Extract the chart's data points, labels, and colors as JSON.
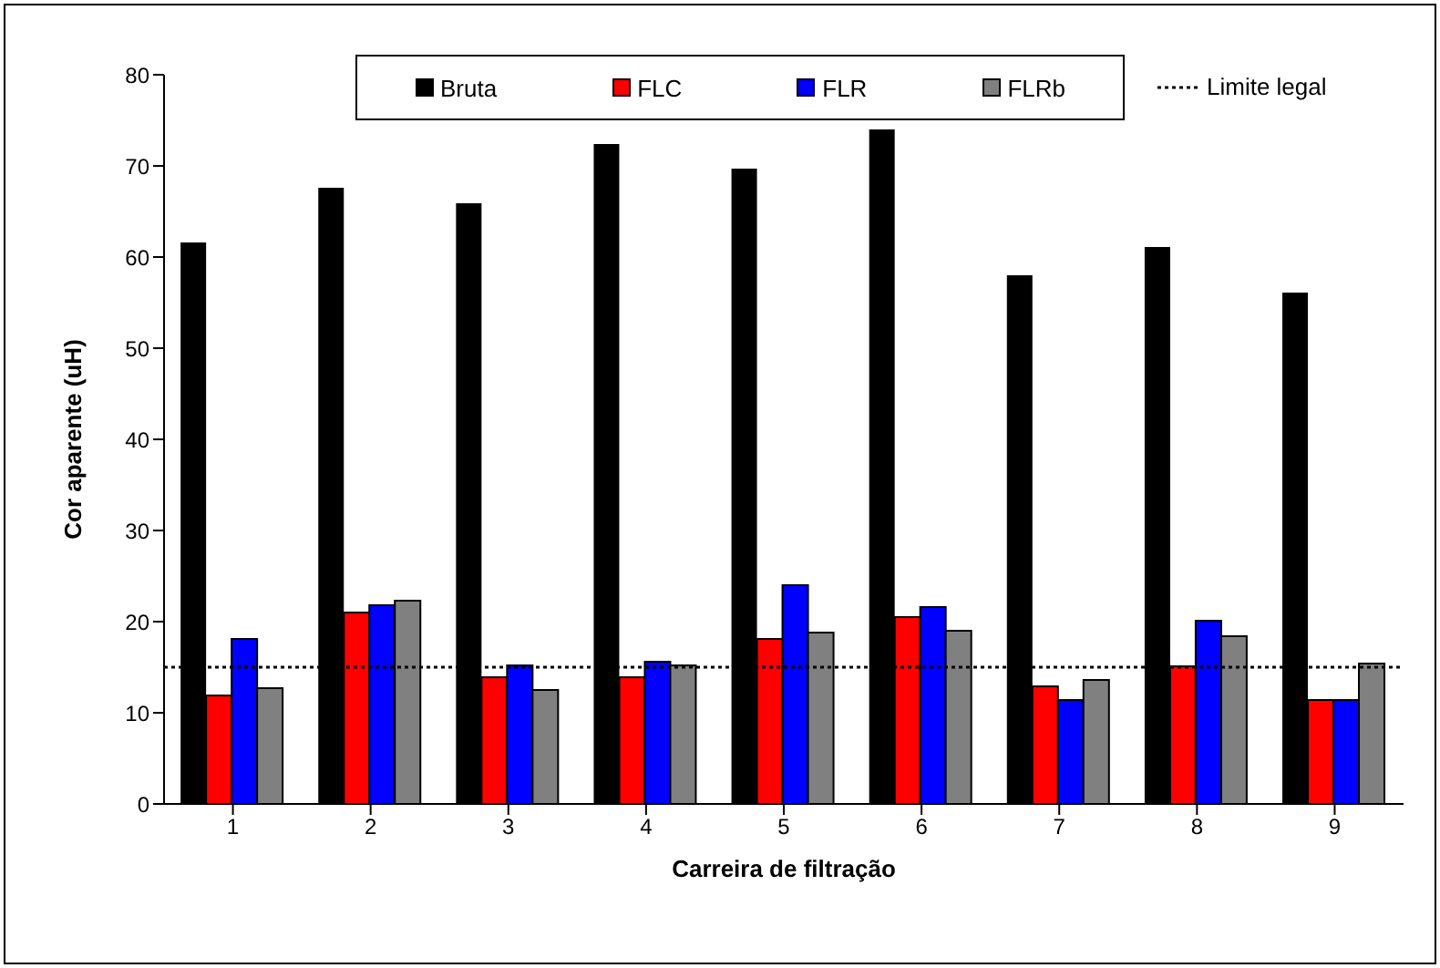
{
  "chart_data": {
    "type": "bar",
    "xlabel": "Carreira de filtração",
    "ylabel": "Cor aparente (uH)",
    "categories": [
      "1",
      "2",
      "3",
      "4",
      "5",
      "6",
      "7",
      "8",
      "9"
    ],
    "series": [
      {
        "name": "Bruta",
        "color": "#000000",
        "values": [
          61.6,
          67.6,
          65.9,
          72.4,
          69.7,
          74.0,
          58.0,
          61.1,
          56.1
        ]
      },
      {
        "name": "FLC",
        "color": "#ff0000",
        "values": [
          11.9,
          21.0,
          13.9,
          13.9,
          18.1,
          20.5,
          12.9,
          15.1,
          11.4
        ]
      },
      {
        "name": "FLR",
        "color": "#0000ff",
        "values": [
          18.1,
          21.8,
          15.2,
          15.6,
          24.0,
          21.6,
          11.4,
          20.1,
          11.4
        ]
      },
      {
        "name": "FLRb",
        "color": "#808080",
        "values": [
          12.7,
          22.3,
          12.5,
          15.2,
          18.8,
          19.0,
          13.6,
          18.4,
          15.4
        ]
      }
    ],
    "ref_lines": [
      {
        "axis": "y",
        "value": 15,
        "label": "Limite legal",
        "color": "#000000",
        "line_style": "dotted"
      }
    ],
    "ylim": [
      0,
      80
    ],
    "yticks": [
      0,
      10,
      20,
      30,
      40,
      50,
      60,
      70,
      80
    ],
    "grid": false,
    "legend": "top"
  }
}
